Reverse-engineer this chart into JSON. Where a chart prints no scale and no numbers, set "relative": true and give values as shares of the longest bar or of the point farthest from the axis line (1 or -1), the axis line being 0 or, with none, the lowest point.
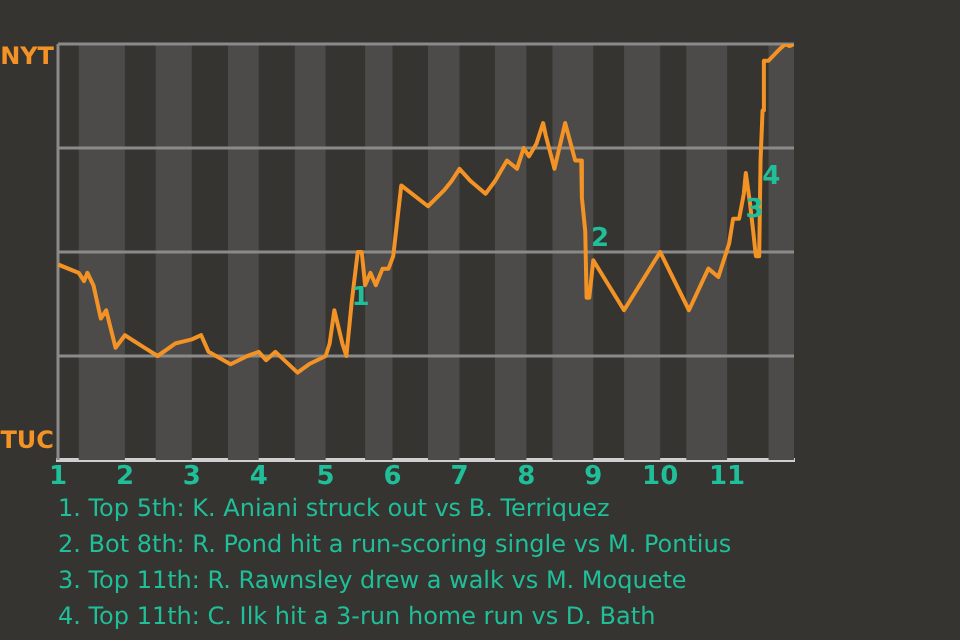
{
  "chart_data": {
    "type": "line",
    "relative": true,
    "x": [
      1.0,
      1.31,
      1.39,
      1.44,
      1.53,
      1.64,
      1.72,
      1.86,
      2.0,
      2.29,
      2.49,
      2.75,
      3.0,
      3.14,
      3.25,
      3.58,
      3.83,
      4.0,
      4.11,
      4.25,
      4.58,
      4.75,
      5.0,
      5.06,
      5.13,
      5.25,
      5.31,
      5.39,
      5.48,
      5.54,
      5.59,
      5.67,
      5.75,
      5.85,
      5.94,
      6.01,
      6.13,
      6.53,
      6.78,
      6.88,
      7.0,
      7.17,
      7.39,
      7.53,
      7.71,
      7.86,
      7.96,
      8.04,
      8.15,
      8.23,
      8.25,
      8.29,
      8.42,
      8.58,
      8.73,
      8.82,
      8.83,
      8.88,
      8.9,
      8.94,
      9.0,
      9.46,
      10.0,
      10.43,
      10.72,
      10.87,
      11.03,
      11.09,
      11.18,
      11.25,
      11.28,
      11.34,
      11.39,
      11.43,
      11.48,
      11.5,
      11.53,
      11.55,
      11.62,
      11.8,
      11.87,
      11.93,
      12.0
    ],
    "series": [
      {
        "color": "#f39225",
        "values": [
          0.47,
          0.45,
          0.43,
          0.45,
          0.42,
          0.34,
          0.36,
          0.27,
          0.3,
          0.27,
          0.25,
          0.28,
          0.29,
          0.3,
          0.26,
          0.23,
          0.25,
          0.26,
          0.24,
          0.26,
          0.21,
          0.23,
          0.25,
          0.28,
          0.36,
          0.28,
          0.25,
          0.38,
          0.5,
          0.5,
          0.42,
          0.45,
          0.42,
          0.46,
          0.46,
          0.49,
          0.66,
          0.61,
          0.65,
          0.67,
          0.7,
          0.67,
          0.64,
          0.67,
          0.72,
          0.7,
          0.75,
          0.73,
          0.76,
          0.8,
          0.81,
          0.78,
          0.7,
          0.81,
          0.72,
          0.72,
          0.63,
          0.55,
          0.39,
          0.39,
          0.48,
          0.36,
          0.5,
          0.36,
          0.46,
          0.44,
          0.52,
          0.58,
          0.58,
          0.64,
          0.69,
          0.62,
          0.55,
          0.49,
          0.49,
          0.72,
          0.84,
          0.96,
          0.96,
          0.99,
          1.0,
          0.995,
          1.0
        ]
      }
    ],
    "xlim": [
      1,
      12
    ],
    "xticks": [
      1,
      2,
      3,
      4,
      5,
      6,
      7,
      8,
      9,
      10,
      11
    ],
    "ref_lines": [
      {
        "axis": "y",
        "value": 0.25,
        "color": "#8a8a8a"
      },
      {
        "axis": "y",
        "value": 0.5,
        "color": "#8a8a8a"
      },
      {
        "axis": "y",
        "value": 0.75,
        "color": "#8a8a8a"
      },
      {
        "axis": "y",
        "value": 1,
        "color": "#8a8a8a"
      }
    ],
    "bands": [
      {
        "axis": "x",
        "from": 1.31,
        "to": 2,
        "color": "#4d4b49"
      },
      {
        "axis": "x",
        "from": 2.46,
        "to": 3,
        "color": "#4d4b49"
      },
      {
        "axis": "x",
        "from": 3.54,
        "to": 4,
        "color": "#4d4b49"
      },
      {
        "axis": "x",
        "from": 4.54,
        "to": 5,
        "color": "#4d4b49"
      },
      {
        "axis": "x",
        "from": 5.59,
        "to": 6,
        "color": "#4d4b49"
      },
      {
        "axis": "x",
        "from": 6.53,
        "to": 7,
        "color": "#4d4b49"
      },
      {
        "axis": "x",
        "from": 7.53,
        "to": 8,
        "color": "#4d4b49"
      },
      {
        "axis": "x",
        "from": 8.39,
        "to": 9,
        "color": "#4d4b49"
      },
      {
        "axis": "x",
        "from": 9.46,
        "to": 10,
        "color": "#4d4b49"
      },
      {
        "axis": "x",
        "from": 10.39,
        "to": 11,
        "color": "#4d4b49"
      },
      {
        "axis": "x",
        "from": 11.62,
        "to": 12,
        "color": "#4d4b49"
      }
    ],
    "annotations": [
      "NYT",
      "TUC",
      {
        "text": "1",
        "x": 5.52,
        "y": 0.39
      },
      {
        "text": "2",
        "x": 9.1,
        "y": 0.53
      },
      {
        "text": "3",
        "x": 11.41,
        "y": 0.6
      },
      {
        "text": "4",
        "x": 11.66,
        "y": 0.68
      },
      "1. Top 5th: K. Aniani struck out vs B. Terriquez",
      "2. Bot 8th: R. Pond hit a run-scoring single vs M. Pontius",
      "3. Top 11th: R. Rawnsley drew a walk vs M. Moquete",
      "4. Top 11th: C. Ilk hit a 3-run home run vs D. Bath"
    ],
    "legend": false,
    "marker": "none",
    "line_style": "solid"
  }
}
